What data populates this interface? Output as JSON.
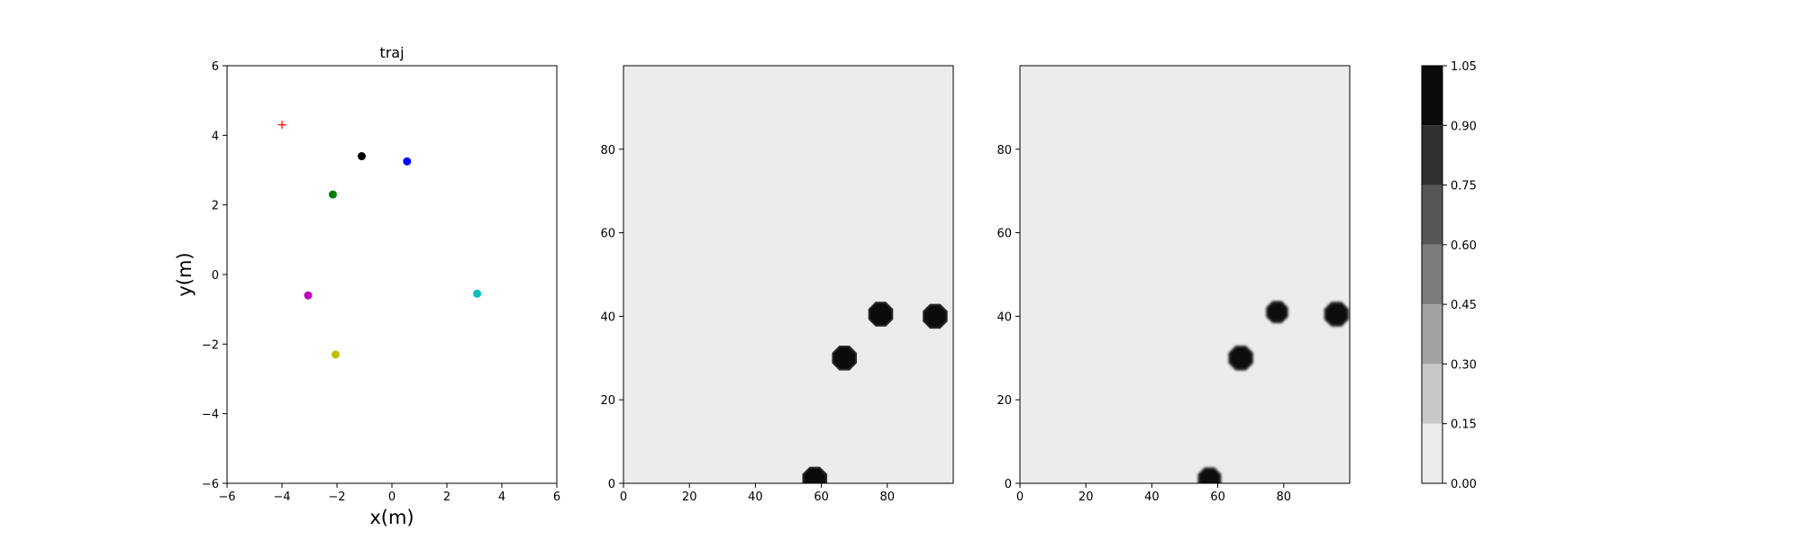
{
  "chart_data": [
    {
      "type": "scatter",
      "title": "traj",
      "xlabel": "x(m)",
      "ylabel": "y(m)",
      "xlim": [
        -6,
        6
      ],
      "ylim": [
        -6,
        6
      ],
      "xticks": [
        -6,
        -4,
        -2,
        0,
        2,
        4,
        6
      ],
      "yticks": [
        -6,
        -4,
        -2,
        0,
        2,
        4,
        6
      ],
      "grid": false,
      "points": [
        {
          "x": -4.0,
          "y": 4.3,
          "color": "#ff0000",
          "marker": "plus"
        },
        {
          "x": -1.1,
          "y": 3.4,
          "color": "#000000",
          "marker": "circle"
        },
        {
          "x": 0.55,
          "y": 3.25,
          "color": "#0000ff",
          "marker": "circle"
        },
        {
          "x": -2.15,
          "y": 2.3,
          "color": "#008000",
          "marker": "circle"
        },
        {
          "x": -3.05,
          "y": -0.6,
          "color": "#bf00bf",
          "marker": "circle"
        },
        {
          "x": 3.1,
          "y": -0.55,
          "color": "#00bfbf",
          "marker": "circle"
        },
        {
          "x": -2.05,
          "y": -2.3,
          "color": "#bfbf00",
          "marker": "circle"
        }
      ]
    },
    {
      "type": "heatmap",
      "xlim": [
        0,
        100
      ],
      "ylim": [
        0,
        100
      ],
      "xticks": [
        0,
        20,
        40,
        60,
        80
      ],
      "yticks": [
        0,
        20,
        40,
        60,
        80
      ],
      "background_value": 0.08,
      "blobs": [
        {
          "x": 58,
          "y": 1,
          "r": 3.6,
          "value": 1.0
        },
        {
          "x": 67,
          "y": 30,
          "r": 3.6,
          "value": 1.0
        },
        {
          "x": 78,
          "y": 40.5,
          "r": 3.6,
          "value": 1.0
        },
        {
          "x": 94.5,
          "y": 40,
          "r": 3.6,
          "value": 1.0
        }
      ]
    },
    {
      "type": "heatmap",
      "xlim": [
        0,
        100
      ],
      "ylim": [
        0,
        100
      ],
      "xticks": [
        0,
        20,
        40,
        60,
        80
      ],
      "yticks": [
        0,
        20,
        40,
        60,
        80
      ],
      "background_value": 0.08,
      "blobs": [
        {
          "x": 57.5,
          "y": 1,
          "r": 3.4,
          "value": 1.0
        },
        {
          "x": 67,
          "y": 30,
          "r": 3.6,
          "value": 1.0
        },
        {
          "x": 78,
          "y": 41,
          "r": 3.2,
          "value": 1.0
        },
        {
          "x": 96,
          "y": 40.5,
          "r": 3.6,
          "value": 1.0
        }
      ]
    }
  ],
  "colorbar": {
    "levels": [
      0.0,
      0.15,
      0.3,
      0.45,
      0.6,
      0.75,
      0.9,
      1.05
    ],
    "tick_labels": [
      "0.00",
      "0.15",
      "0.30",
      "0.45",
      "0.60",
      "0.75",
      "0.90",
      "1.05"
    ],
    "colors": [
      "#ececec",
      "#c8c8c8",
      "#a2a2a2",
      "#7c7c7c",
      "#565656",
      "#303030",
      "#0b0b0b"
    ]
  }
}
